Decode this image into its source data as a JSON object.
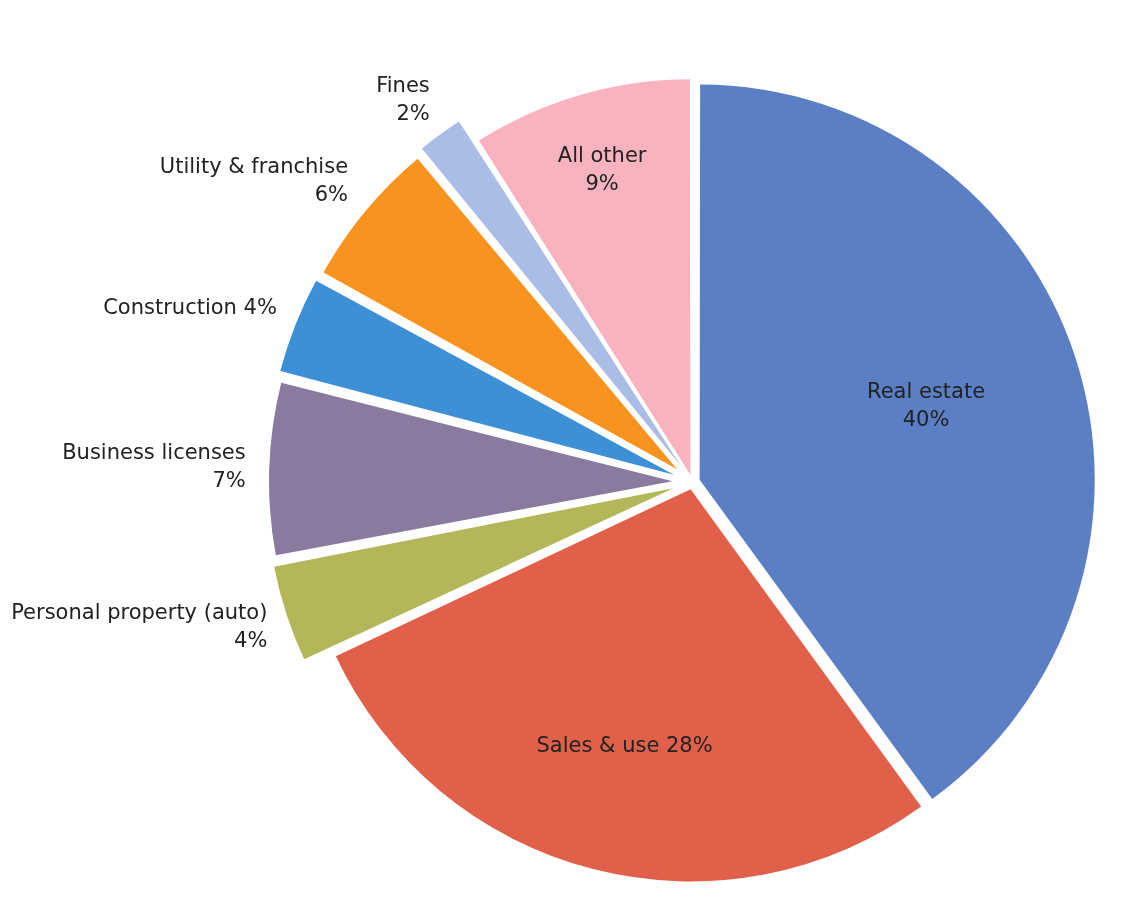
{
  "chart_data": {
    "type": "pie",
    "categories": [
      "Real estate",
      "Sales & use",
      "Personal property (auto)",
      "Business licenses",
      "Construction",
      "Utility & franchise",
      "Fines",
      "All other"
    ],
    "values": [
      40,
      28,
      4,
      7,
      4,
      6,
      2,
      9
    ],
    "value_labels": [
      "40%",
      "28%",
      "4%",
      "7%",
      "4%",
      "6%",
      "2%",
      "9%"
    ],
    "colors": [
      "#5b7fc4",
      "#e0604a",
      "#b5b55a",
      "#8a7aa0",
      "#3d8fd6",
      "#f7931e",
      "#aabde6",
      "#f9b3bf"
    ],
    "legend": false
  }
}
